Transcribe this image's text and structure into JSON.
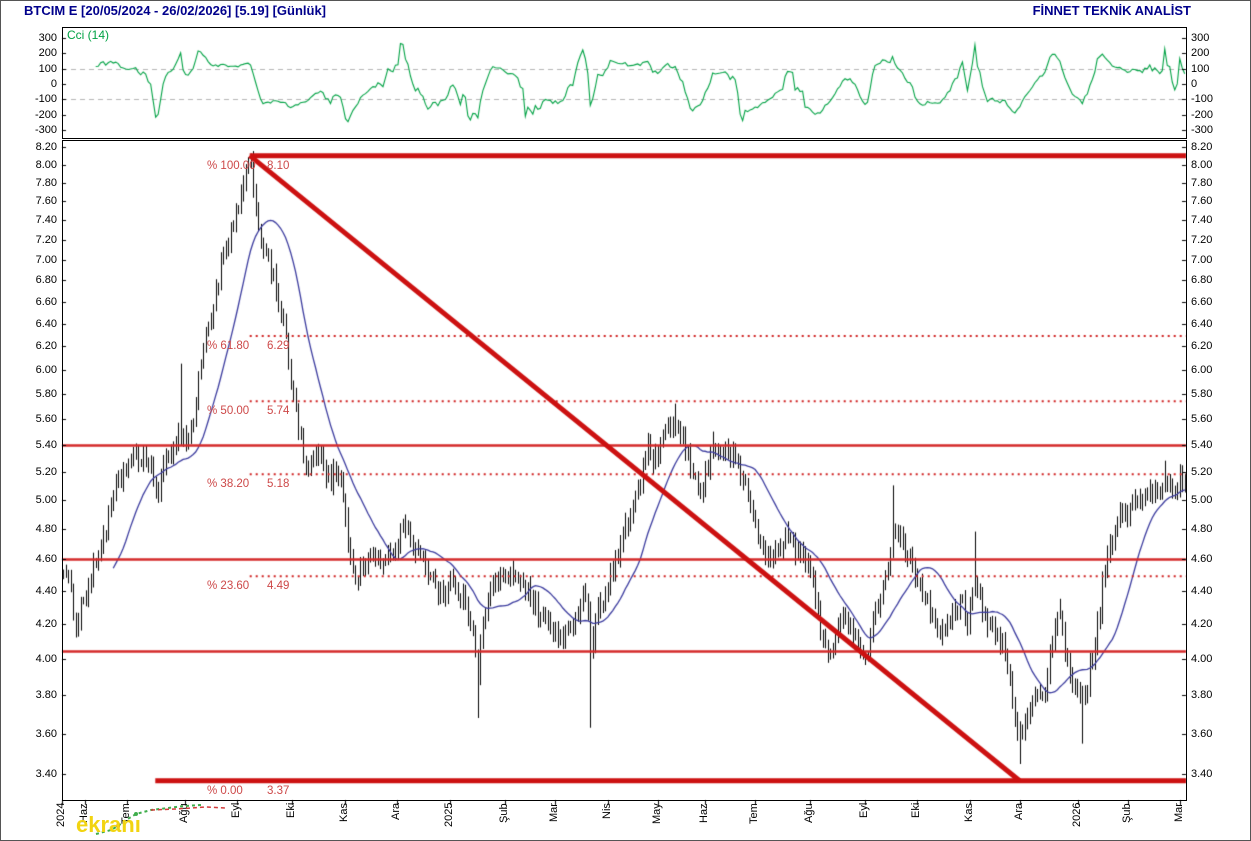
{
  "header": {
    "title": "BTCIM E  [20/05/2024 - 26/02/2026]  [5.19]  [Günlük]",
    "brand": "FİNNET TEKNİK ANALİST"
  },
  "watermark": {
    "text": "ekranı"
  },
  "colors": {
    "title_navy": "#00008b",
    "cci_green": "#00a244",
    "grid_dash_gray": "#b4b4b4",
    "fib_line_red": "#cf1f1f",
    "fib_bold_red": "#cc1111",
    "fib_label_red": "#cd4848",
    "support_red": "#d42a2a",
    "ma_blue": "#3b3b9e",
    "candle_black": "#000000",
    "watermark_yellow": "#f2d411"
  },
  "chart_data": [
    {
      "id": "cci",
      "type": "line",
      "title": "Cci (14)",
      "period": 14,
      "derived_from": "CCI(14) of the daily price series in the panel below",
      "ylim": [
        -350,
        370
      ],
      "yticks": [
        300,
        200,
        100,
        0,
        -100,
        -200,
        -300
      ],
      "dashed_levels": [
        100,
        -100
      ],
      "legend_position": "top-left",
      "grid": "dashed guides at +100 / -100 only"
    },
    {
      "id": "price",
      "type": "candlestick",
      "symbol": "BTCIM E",
      "interval": "Günlük",
      "date_range": "20/05/2024 - 26/02/2026",
      "last_price": "5.19",
      "yscale": "log",
      "ylim": [
        3.28,
        8.28
      ],
      "yticks": [
        8.2,
        8.0,
        7.8,
        7.6,
        7.4,
        7.2,
        7.0,
        6.8,
        6.6,
        6.4,
        6.2,
        6.0,
        5.8,
        5.6,
        5.4,
        5.2,
        5.0,
        4.8,
        4.6,
        4.4,
        4.2,
        4.0,
        3.8,
        3.6,
        3.4
      ],
      "bars": 450,
      "ma_period": 21,
      "months": [
        {
          "label": "2024",
          "x": 0.0
        },
        {
          "label": "Haz",
          "x": 0.0205
        },
        {
          "label": "Tem",
          "x": 0.0578
        },
        {
          "label": "Ağu",
          "x": 0.1094
        },
        {
          "label": "Eyl",
          "x": 0.1557
        },
        {
          "label": "Eki",
          "x": 0.2046
        },
        {
          "label": "Kas",
          "x": 0.2518
        },
        {
          "label": "Ara",
          "x": 0.298
        },
        {
          "label": "2025",
          "x": 0.3452
        },
        {
          "label": "Şub",
          "x": 0.3941
        },
        {
          "label": "Mar",
          "x": 0.4386
        },
        {
          "label": "Nis",
          "x": 0.4858
        },
        {
          "label": "May",
          "x": 0.5302
        },
        {
          "label": "Haz",
          "x": 0.5721
        },
        {
          "label": "Tem",
          "x": 0.6166
        },
        {
          "label": "Ağu",
          "x": 0.6655
        },
        {
          "label": "Eyl",
          "x": 0.7144
        },
        {
          "label": "Eki",
          "x": 0.7606
        },
        {
          "label": "Kas",
          "x": 0.8078
        },
        {
          "label": "Ara",
          "x": 0.8523
        },
        {
          "label": "2026",
          "x": 0.9039
        },
        {
          "label": "Şub",
          "x": 0.9484
        },
        {
          "label": "Mar",
          "x": 0.9947
        }
      ],
      "fibonacci": [
        {
          "pct_label": "% 100.00",
          "value": 8.1,
          "value_label": "8.10",
          "style": "bold",
          "x_start": 0.167
        },
        {
          "pct_label": "% 61.80",
          "value": 6.29,
          "value_label": "6.29",
          "style": "dotted",
          "x_start": 0.167
        },
        {
          "pct_label": "% 50.00",
          "value": 5.74,
          "value_label": "5.74",
          "style": "dotted",
          "x_start": 0.167
        },
        {
          "pct_label": "% 38.20",
          "value": 5.18,
          "value_label": "5.18",
          "style": "dotted",
          "x_start": 0.167
        },
        {
          "pct_label": "% 23.60",
          "value": 4.49,
          "value_label": "4.49",
          "style": "dotted",
          "x_start": 0.167
        },
        {
          "pct_label": "% 0.00",
          "value": 3.37,
          "value_label": "3.37",
          "style": "bold",
          "x_start": 0.083
        }
      ],
      "support_lines": [
        5.4,
        4.6,
        4.04
      ],
      "trendline": {
        "x1": 0.167,
        "p1": 8.1,
        "x2": 0.852,
        "p2": 3.37
      },
      "close_anchors": [
        [
          0.0,
          4.55
        ],
        [
          0.006,
          4.38
        ],
        [
          0.012,
          4.2
        ],
        [
          0.016,
          4.32
        ],
        [
          0.022,
          4.42
        ],
        [
          0.03,
          4.6
        ],
        [
          0.038,
          4.82
        ],
        [
          0.046,
          5.05
        ],
        [
          0.055,
          5.22
        ],
        [
          0.065,
          5.28
        ],
        [
          0.072,
          5.33
        ],
        [
          0.078,
          5.18
        ],
        [
          0.083,
          5.05
        ],
        [
          0.09,
          5.22
        ],
        [
          0.097,
          5.38
        ],
        [
          0.104,
          5.52
        ],
        [
          0.11,
          5.42
        ],
        [
          0.116,
          5.58
        ],
        [
          0.123,
          6.12
        ],
        [
          0.132,
          6.5
        ],
        [
          0.141,
          6.95
        ],
        [
          0.15,
          7.28
        ],
        [
          0.158,
          7.65
        ],
        [
          0.167,
          8.05
        ],
        [
          0.171,
          7.55
        ],
        [
          0.176,
          7.22
        ],
        [
          0.183,
          6.95
        ],
        [
          0.19,
          6.7
        ],
        [
          0.196,
          6.4
        ],
        [
          0.203,
          5.85
        ],
        [
          0.21,
          5.5
        ],
        [
          0.216,
          5.18
        ],
        [
          0.222,
          5.28
        ],
        [
          0.228,
          5.35
        ],
        [
          0.235,
          5.12
        ],
        [
          0.241,
          5.18
        ],
        [
          0.247,
          5.22
        ],
        [
          0.252,
          4.82
        ],
        [
          0.257,
          4.55
        ],
        [
          0.263,
          4.48
        ],
        [
          0.27,
          4.58
        ],
        [
          0.277,
          4.65
        ],
        [
          0.284,
          4.55
        ],
        [
          0.291,
          4.62
        ],
        [
          0.298,
          4.7
        ],
        [
          0.304,
          4.85
        ],
        [
          0.31,
          4.72
        ],
        [
          0.317,
          4.62
        ],
        [
          0.324,
          4.55
        ],
        [
          0.331,
          4.45
        ],
        [
          0.338,
          4.38
        ],
        [
          0.345,
          4.46
        ],
        [
          0.352,
          4.38
        ],
        [
          0.36,
          4.3
        ],
        [
          0.366,
          4.15
        ],
        [
          0.37,
          3.92
        ],
        [
          0.374,
          4.18
        ],
        [
          0.38,
          4.38
        ],
        [
          0.387,
          4.5
        ],
        [
          0.394,
          4.45
        ],
        [
          0.401,
          4.52
        ],
        [
          0.408,
          4.48
        ],
        [
          0.415,
          4.38
        ],
        [
          0.422,
          4.28
        ],
        [
          0.43,
          4.22
        ],
        [
          0.439,
          4.15
        ],
        [
          0.446,
          4.08
        ],
        [
          0.453,
          4.18
        ],
        [
          0.46,
          4.32
        ],
        [
          0.466,
          4.42
        ],
        [
          0.471,
          4.05
        ],
        [
          0.476,
          4.28
        ],
        [
          0.482,
          4.38
        ],
        [
          0.49,
          4.52
        ],
        [
          0.498,
          4.72
        ],
        [
          0.506,
          4.9
        ],
        [
          0.514,
          5.12
        ],
        [
          0.521,
          5.35
        ],
        [
          0.528,
          5.28
        ],
        [
          0.535,
          5.42
        ],
        [
          0.542,
          5.58
        ],
        [
          0.548,
          5.52
        ],
        [
          0.555,
          5.35
        ],
        [
          0.562,
          5.15
        ],
        [
          0.568,
          5.08
        ],
        [
          0.574,
          5.22
        ],
        [
          0.58,
          5.38
        ],
        [
          0.587,
          5.3
        ],
        [
          0.594,
          5.36
        ],
        [
          0.601,
          5.25
        ],
        [
          0.608,
          5.1
        ],
        [
          0.615,
          4.88
        ],
        [
          0.622,
          4.68
        ],
        [
          0.629,
          4.58
        ],
        [
          0.636,
          4.66
        ],
        [
          0.643,
          4.76
        ],
        [
          0.651,
          4.68
        ],
        [
          0.658,
          4.62
        ],
        [
          0.665,
          4.55
        ],
        [
          0.671,
          4.32
        ],
        [
          0.677,
          4.12
        ],
        [
          0.684,
          4.02
        ],
        [
          0.69,
          4.15
        ],
        [
          0.697,
          4.28
        ],
        [
          0.704,
          4.18
        ],
        [
          0.71,
          4.05
        ],
        [
          0.716,
          3.98
        ],
        [
          0.722,
          4.22
        ],
        [
          0.729,
          4.42
        ],
        [
          0.735,
          4.55
        ],
        [
          0.74,
          4.78
        ],
        [
          0.746,
          4.72
        ],
        [
          0.752,
          4.62
        ],
        [
          0.758,
          4.52
        ],
        [
          0.764,
          4.45
        ],
        [
          0.771,
          4.32
        ],
        [
          0.778,
          4.22
        ],
        [
          0.785,
          4.12
        ],
        [
          0.792,
          4.25
        ],
        [
          0.799,
          4.35
        ],
        [
          0.806,
          4.22
        ],
        [
          0.813,
          4.48
        ],
        [
          0.819,
          4.32
        ],
        [
          0.826,
          4.18
        ],
        [
          0.833,
          4.1
        ],
        [
          0.84,
          4.02
        ],
        [
          0.846,
          3.78
        ],
        [
          0.852,
          3.55
        ],
        [
          0.857,
          3.66
        ],
        [
          0.863,
          3.76
        ],
        [
          0.87,
          3.82
        ],
        [
          0.877,
          3.86
        ],
        [
          0.884,
          4.18
        ],
        [
          0.888,
          4.24
        ],
        [
          0.893,
          4.02
        ],
        [
          0.9,
          3.88
        ],
        [
          0.907,
          3.76
        ],
        [
          0.914,
          3.88
        ],
        [
          0.921,
          4.12
        ],
        [
          0.928,
          4.48
        ],
        [
          0.934,
          4.7
        ],
        [
          0.941,
          4.85
        ],
        [
          0.948,
          4.92
        ],
        [
          0.955,
          5.02
        ],
        [
          0.961,
          4.95
        ],
        [
          0.968,
          5.08
        ],
        [
          0.975,
          5.0
        ],
        [
          0.981,
          5.15
        ],
        [
          0.988,
          5.06
        ],
        [
          1.0,
          5.19
        ]
      ],
      "wick_extremes": [
        {
          "x": 0.012,
          "price": 4.12,
          "side": "low"
        },
        {
          "x": 0.104,
          "price": 6.05,
          "side": "high"
        },
        {
          "x": 0.167,
          "price": 8.1,
          "side": "high"
        },
        {
          "x": 0.37,
          "price": 3.68,
          "side": "low"
        },
        {
          "x": 0.471,
          "price": 3.63,
          "side": "low"
        },
        {
          "x": 0.545,
          "price": 5.72,
          "side": "high"
        },
        {
          "x": 0.58,
          "price": 5.5,
          "side": "high"
        },
        {
          "x": 0.74,
          "price": 5.1,
          "side": "high"
        },
        {
          "x": 0.813,
          "price": 4.78,
          "side": "high"
        },
        {
          "x": 0.852,
          "price": 3.45,
          "side": "low"
        },
        {
          "x": 0.888,
          "price": 4.35,
          "side": "high"
        },
        {
          "x": 0.908,
          "price": 3.55,
          "side": "low"
        },
        {
          "x": 0.982,
          "price": 5.28,
          "side": "high"
        }
      ]
    }
  ]
}
